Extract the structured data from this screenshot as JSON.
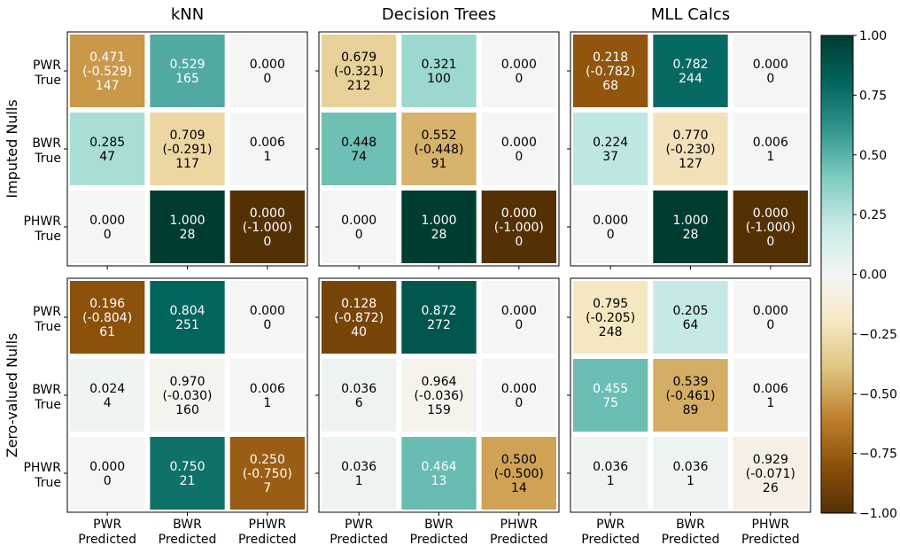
{
  "chart_data": {
    "type": "heatmap",
    "column_titles": [
      "kNN",
      "Decision Trees",
      "MLL Calcs"
    ],
    "row_titles": [
      "Imputed Nulls",
      "Zero-valued Nulls"
    ],
    "y_tick_labels": [
      [
        "PWR",
        "True"
      ],
      [
        "BWR",
        "True"
      ],
      [
        "PHWR",
        "True"
      ]
    ],
    "x_tick_labels": [
      [
        "PWR",
        "Predicted"
      ],
      [
        "BWR",
        "Predicted"
      ],
      [
        "PHWR",
        "Predicted"
      ]
    ],
    "colorbar": {
      "range": [
        -1.0,
        1.0
      ],
      "ticks": [
        "1.00",
        "0.75",
        "0.50",
        "0.25",
        "0.00",
        "−0.25",
        "−0.50",
        "−0.75",
        "−1.00"
      ],
      "tick_values": [
        1.0,
        0.75,
        0.5,
        0.25,
        0.0,
        -0.25,
        -0.5,
        -0.75,
        -1.0
      ],
      "colormap": "BrBG"
    },
    "panels": [
      {
        "row": "Imputed Nulls",
        "column": "kNN",
        "cells": [
          [
            {
              "value": 0.471,
              "signed": -0.529,
              "count": 147,
              "lines": [
                "0.471",
                "(-0.529)",
                "147"
              ]
            },
            {
              "value": 0.529,
              "signed": 0.529,
              "count": 165,
              "lines": [
                "0.529",
                "165"
              ]
            },
            {
              "value": 0.0,
              "signed": 0.0,
              "count": 0,
              "lines": [
                "0.000",
                "0"
              ]
            }
          ],
          [
            {
              "value": 0.285,
              "signed": 0.285,
              "count": 47,
              "lines": [
                "0.285",
                "47"
              ]
            },
            {
              "value": 0.709,
              "signed": -0.291,
              "count": 117,
              "lines": [
                "0.709",
                "(-0.291)",
                "117"
              ]
            },
            {
              "value": 0.006,
              "signed": 0.006,
              "count": 1,
              "lines": [
                "0.006",
                "1"
              ]
            }
          ],
          [
            {
              "value": 0.0,
              "signed": 0.0,
              "count": 0,
              "lines": [
                "0.000",
                "0"
              ]
            },
            {
              "value": 1.0,
              "signed": 1.0,
              "count": 28,
              "lines": [
                "1.000",
                "28"
              ]
            },
            {
              "value": 0.0,
              "signed": -1.0,
              "count": 0,
              "lines": [
                "0.000",
                "(-1.000)",
                "0"
              ]
            }
          ]
        ]
      },
      {
        "row": "Imputed Nulls",
        "column": "Decision Trees",
        "cells": [
          [
            {
              "value": 0.679,
              "signed": -0.321,
              "count": 212,
              "lines": [
                "0.679",
                "(-0.321)",
                "212"
              ]
            },
            {
              "value": 0.321,
              "signed": 0.321,
              "count": 100,
              "lines": [
                "0.321",
                "100"
              ]
            },
            {
              "value": 0.0,
              "signed": 0.0,
              "count": 0,
              "lines": [
                "0.000",
                "0"
              ]
            }
          ],
          [
            {
              "value": 0.448,
              "signed": 0.448,
              "count": 74,
              "lines": [
                "0.448",
                "74"
              ]
            },
            {
              "value": 0.552,
              "signed": -0.448,
              "count": 91,
              "lines": [
                "0.552",
                "(-0.448)",
                "91"
              ]
            },
            {
              "value": 0.0,
              "signed": 0.0,
              "count": 0,
              "lines": [
                "0.000",
                "0"
              ]
            }
          ],
          [
            {
              "value": 0.0,
              "signed": 0.0,
              "count": 0,
              "lines": [
                "0.000",
                "0"
              ]
            },
            {
              "value": 1.0,
              "signed": 1.0,
              "count": 28,
              "lines": [
                "1.000",
                "28"
              ]
            },
            {
              "value": 0.0,
              "signed": -1.0,
              "count": 0,
              "lines": [
                "0.000",
                "(-1.000)",
                "0"
              ]
            }
          ]
        ]
      },
      {
        "row": "Imputed Nulls",
        "column": "MLL Calcs",
        "cells": [
          [
            {
              "value": 0.218,
              "signed": -0.782,
              "count": 68,
              "lines": [
                "0.218",
                "(-0.782)",
                "68"
              ]
            },
            {
              "value": 0.782,
              "signed": 0.782,
              "count": 244,
              "lines": [
                "0.782",
                "244"
              ]
            },
            {
              "value": 0.0,
              "signed": 0.0,
              "count": 0,
              "lines": [
                "0.000",
                "0"
              ]
            }
          ],
          [
            {
              "value": 0.224,
              "signed": 0.224,
              "count": 37,
              "lines": [
                "0.224",
                "37"
              ]
            },
            {
              "value": 0.77,
              "signed": -0.23,
              "count": 127,
              "lines": [
                "0.770",
                "(-0.230)",
                "127"
              ]
            },
            {
              "value": 0.006,
              "signed": 0.006,
              "count": 1,
              "lines": [
                "0.006",
                "1"
              ]
            }
          ],
          [
            {
              "value": 0.0,
              "signed": 0.0,
              "count": 0,
              "lines": [
                "0.000",
                "0"
              ]
            },
            {
              "value": 1.0,
              "signed": 1.0,
              "count": 28,
              "lines": [
                "1.000",
                "28"
              ]
            },
            {
              "value": 0.0,
              "signed": -1.0,
              "count": 0,
              "lines": [
                "0.000",
                "(-1.000)",
                "0"
              ]
            }
          ]
        ]
      },
      {
        "row": "Zero-valued Nulls",
        "column": "kNN",
        "cells": [
          [
            {
              "value": 0.196,
              "signed": -0.804,
              "count": 61,
              "lines": [
                "0.196",
                "(-0.804)",
                "61"
              ]
            },
            {
              "value": 0.804,
              "signed": 0.804,
              "count": 251,
              "lines": [
                "0.804",
                "251"
              ]
            },
            {
              "value": 0.0,
              "signed": 0.0,
              "count": 0,
              "lines": [
                "0.000",
                "0"
              ]
            }
          ],
          [
            {
              "value": 0.024,
              "signed": 0.024,
              "count": 4,
              "lines": [
                "0.024",
                "4"
              ]
            },
            {
              "value": 0.97,
              "signed": -0.03,
              "count": 160,
              "lines": [
                "0.970",
                "(-0.030)",
                "160"
              ]
            },
            {
              "value": 0.006,
              "signed": 0.006,
              "count": 1,
              "lines": [
                "0.006",
                "1"
              ]
            }
          ],
          [
            {
              "value": 0.0,
              "signed": 0.0,
              "count": 0,
              "lines": [
                "0.000",
                "0"
              ]
            },
            {
              "value": 0.75,
              "signed": 0.75,
              "count": 21,
              "lines": [
                "0.750",
                "21"
              ]
            },
            {
              "value": 0.25,
              "signed": -0.75,
              "count": 7,
              "lines": [
                "0.250",
                "(-0.750)",
                "7"
              ]
            }
          ]
        ]
      },
      {
        "row": "Zero-valued Nulls",
        "column": "Decision Trees",
        "cells": [
          [
            {
              "value": 0.128,
              "signed": -0.872,
              "count": 40,
              "lines": [
                "0.128",
                "(-0.872)",
                "40"
              ]
            },
            {
              "value": 0.872,
              "signed": 0.872,
              "count": 272,
              "lines": [
                "0.872",
                "272"
              ]
            },
            {
              "value": 0.0,
              "signed": 0.0,
              "count": 0,
              "lines": [
                "0.000",
                "0"
              ]
            }
          ],
          [
            {
              "value": 0.036,
              "signed": 0.036,
              "count": 6,
              "lines": [
                "0.036",
                "6"
              ]
            },
            {
              "value": 0.964,
              "signed": -0.036,
              "count": 159,
              "lines": [
                "0.964",
                "(-0.036)",
                "159"
              ]
            },
            {
              "value": 0.0,
              "signed": 0.0,
              "count": 0,
              "lines": [
                "0.000",
                "0"
              ]
            }
          ],
          [
            {
              "value": 0.036,
              "signed": 0.036,
              "count": 1,
              "lines": [
                "0.036",
                "1"
              ]
            },
            {
              "value": 0.464,
              "signed": 0.464,
              "count": 13,
              "lines": [
                "0.464",
                "13"
              ]
            },
            {
              "value": 0.5,
              "signed": -0.5,
              "count": 14,
              "lines": [
                "0.500",
                "(-0.500)",
                "14"
              ]
            }
          ]
        ]
      },
      {
        "row": "Zero-valued Nulls",
        "column": "MLL Calcs",
        "cells": [
          [
            {
              "value": 0.795,
              "signed": -0.205,
              "count": 248,
              "lines": [
                "0.795",
                "(-0.205)",
                "248"
              ]
            },
            {
              "value": 0.205,
              "signed": 0.205,
              "count": 64,
              "lines": [
                "0.205",
                "64"
              ]
            },
            {
              "value": 0.0,
              "signed": 0.0,
              "count": 0,
              "lines": [
                "0.000",
                "0"
              ]
            }
          ],
          [
            {
              "value": 0.455,
              "signed": 0.455,
              "count": 75,
              "lines": [
                "0.455",
                "75"
              ]
            },
            {
              "value": 0.539,
              "signed": -0.461,
              "count": 89,
              "lines": [
                "0.539",
                "(-0.461)",
                "89"
              ]
            },
            {
              "value": 0.006,
              "signed": 0.006,
              "count": 1,
              "lines": [
                "0.006",
                "1"
              ]
            }
          ],
          [
            {
              "value": 0.036,
              "signed": 0.036,
              "count": 1,
              "lines": [
                "0.036",
                "1"
              ]
            },
            {
              "value": 0.036,
              "signed": 0.036,
              "count": 1,
              "lines": [
                "0.036",
                "1"
              ]
            },
            {
              "value": 0.929,
              "signed": -0.071,
              "count": 26,
              "lines": [
                "0.929",
                "(-0.071)",
                "26"
              ]
            }
          ]
        ]
      }
    ]
  }
}
